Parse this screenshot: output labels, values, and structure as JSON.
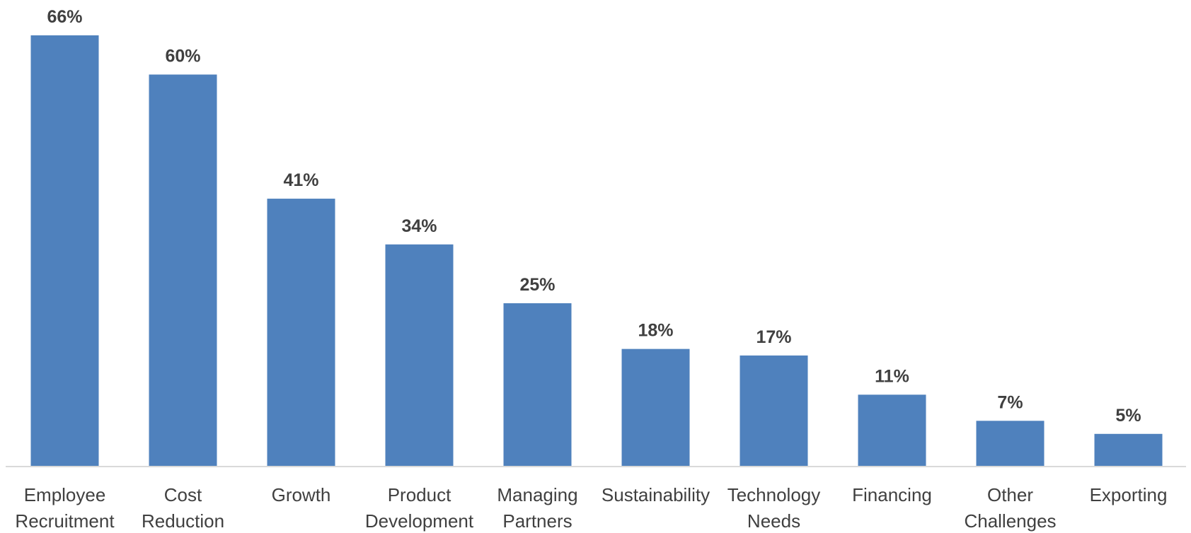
{
  "chart_data": {
    "type": "bar",
    "categories": [
      [
        "Employee",
        "Recruitment"
      ],
      [
        "Cost",
        "Reduction"
      ],
      [
        "Growth"
      ],
      [
        "Product",
        "Development"
      ],
      [
        "Managing",
        "Partners"
      ],
      [
        "Sustainability"
      ],
      [
        "Technology",
        "Needs"
      ],
      [
        "Financing"
      ],
      [
        "Other",
        "Challenges"
      ],
      [
        "Exporting"
      ]
    ],
    "values": [
      66,
      60,
      41,
      34,
      25,
      18,
      17,
      11,
      7,
      5
    ],
    "value_labels": [
      "66%",
      "60%",
      "41%",
      "34%",
      "25%",
      "18%",
      "17%",
      "11%",
      "7%",
      "5%"
    ],
    "title": "",
    "xlabel": "",
    "ylabel": "",
    "ylim": [
      0,
      66
    ],
    "grid": false,
    "legend": "none",
    "bar_color": "#4f81bd",
    "label_color": "#404040",
    "axis_color": "#d9d9d9"
  }
}
